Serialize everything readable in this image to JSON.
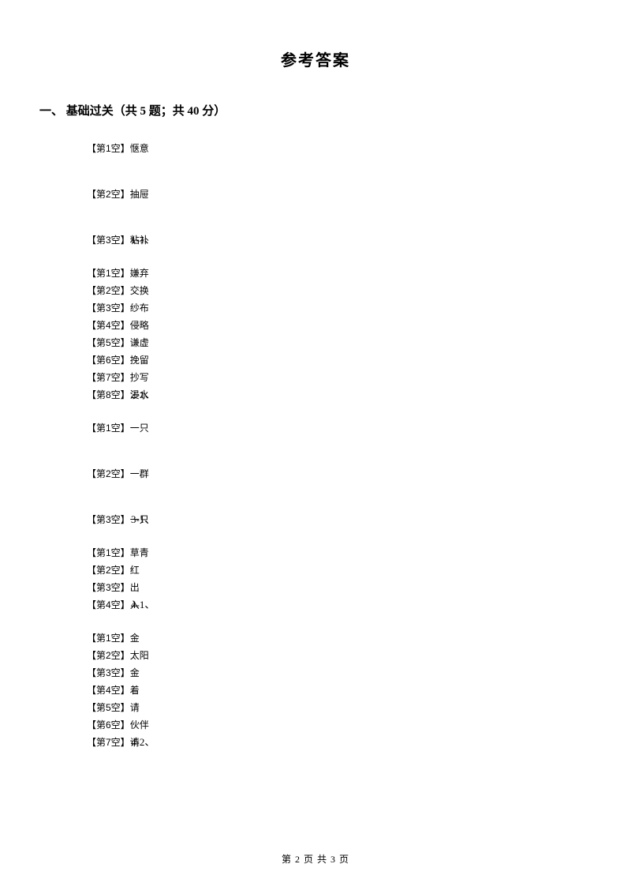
{
  "title": "参考答案",
  "section_header": "一、 基础过关（共 5 题；共 40 分）",
  "groups": [
    {
      "num": "1-1、",
      "spaced": true,
      "answers": [
        {
          "label": "【第1空】",
          "value": "惬意"
        },
        {
          "label": "【第2空】",
          "value": "抽屉"
        },
        {
          "label": "【第3空】",
          "value": "粘补"
        }
      ]
    },
    {
      "num": "2-1、",
      "spaced": false,
      "answers": [
        {
          "label": "【第1空】",
          "value": "嫌弃"
        },
        {
          "label": "【第2空】",
          "value": "交换"
        },
        {
          "label": "【第3空】",
          "value": "纱布"
        },
        {
          "label": "【第4空】",
          "value": "侵略"
        },
        {
          "label": "【第5空】",
          "value": "谦虚"
        },
        {
          "label": "【第6空】",
          "value": "挽留"
        },
        {
          "label": "【第7空】",
          "value": "抄写"
        },
        {
          "label": "【第8空】",
          "value": "浸水"
        }
      ]
    },
    {
      "num": "3-1、",
      "spaced": true,
      "answers": [
        {
          "label": "【第1空】",
          "value": "一只"
        },
        {
          "label": "【第2空】",
          "value": "一群"
        },
        {
          "label": "【第3空】",
          "value": "一只"
        }
      ]
    },
    {
      "num": "4-1、",
      "spaced": false,
      "answers": [
        {
          "label": "【第1空】",
          "value": "草青"
        },
        {
          "label": "【第2空】",
          "value": "红"
        },
        {
          "label": "【第3空】",
          "value": "出"
        },
        {
          "label": "【第4空】",
          "value": "入"
        }
      ]
    },
    {
      "num": "4-2、",
      "spaced": false,
      "answers": [
        {
          "label": "【第1空】",
          "value": "金"
        },
        {
          "label": "【第2空】",
          "value": "太阳"
        },
        {
          "label": "【第3空】",
          "value": "金"
        },
        {
          "label": "【第4空】",
          "value": "着"
        },
        {
          "label": "【第5空】",
          "value": "请"
        },
        {
          "label": "【第6空】",
          "value": "伙伴"
        },
        {
          "label": "【第7空】",
          "value": "请"
        }
      ]
    }
  ],
  "footer": "第 2 页 共 3 页"
}
